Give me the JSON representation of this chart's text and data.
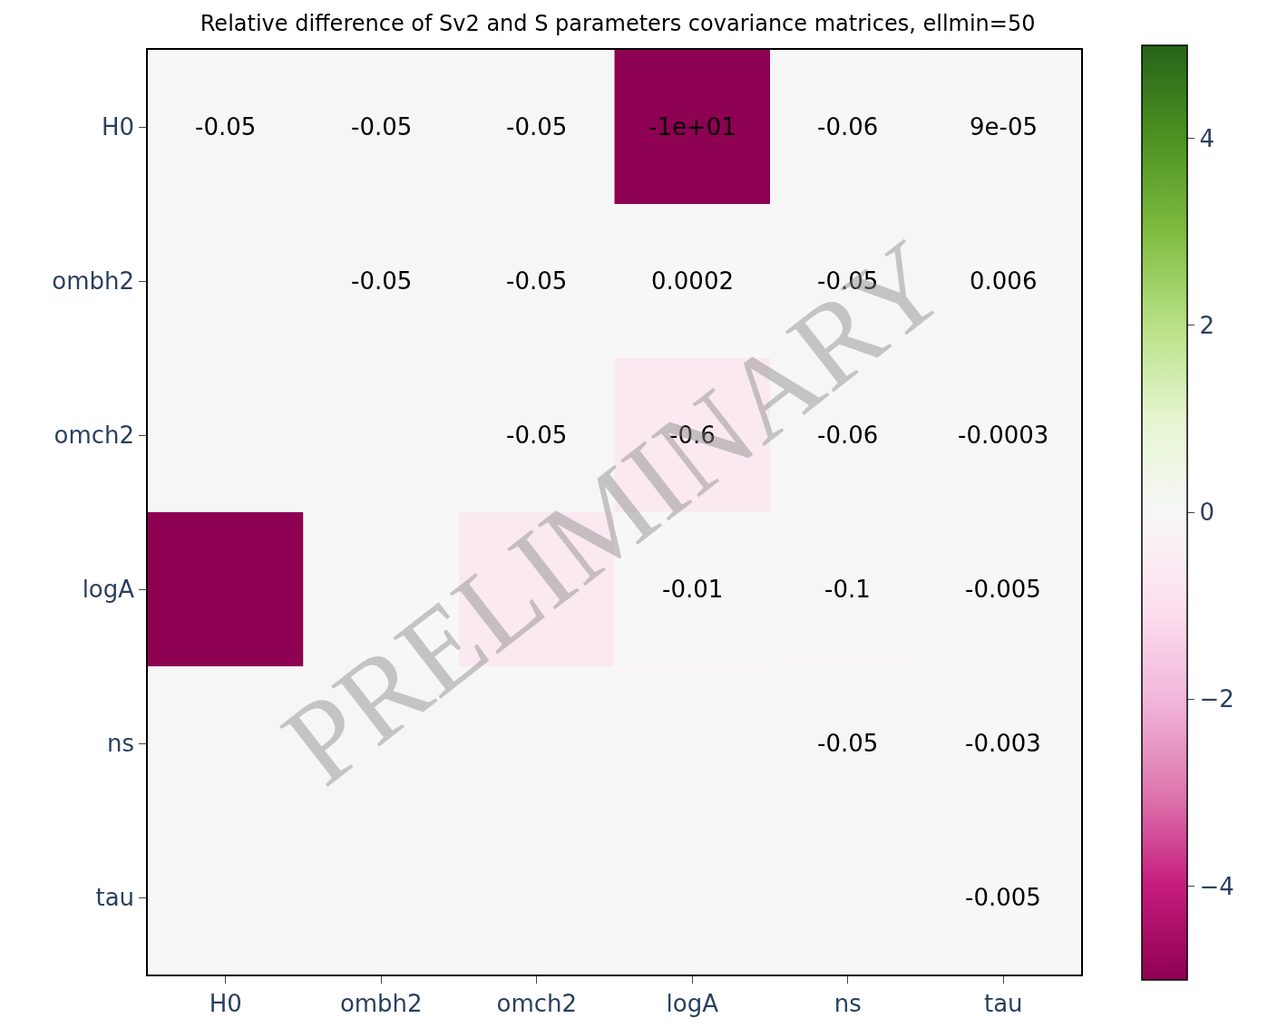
{
  "chart_data": {
    "type": "heatmap",
    "title": "Relative difference of Sv2 and S parameters covariance matrices, ellmin=50",
    "categories": [
      "H0",
      "ombh2",
      "omch2",
      "logA",
      "ns",
      "tau"
    ],
    "y_categories": [
      "H0",
      "ombh2",
      "omch2",
      "logA",
      "ns",
      "tau"
    ],
    "cells": [
      [
        -0.05,
        -0.05,
        -0.05,
        -10,
        -0.06,
        9e-05
      ],
      [
        -0.05,
        -0.05,
        -0.05,
        0.0002,
        -0.05,
        0.006
      ],
      [
        -0.05,
        -0.05,
        -0.05,
        -0.6,
        -0.06,
        -0.0003
      ],
      [
        -10,
        0.0002,
        -0.6,
        -0.01,
        -0.1,
        -0.005
      ],
      [
        -0.06,
        -0.05,
        -0.06,
        -0.1,
        -0.05,
        -0.003
      ],
      [
        9e-05,
        0.006,
        -0.0003,
        -0.005,
        -0.003,
        -0.005
      ]
    ],
    "cell_labels": [
      [
        "-0.05",
        "-0.05",
        "-0.05",
        "-1e+01",
        "-0.06",
        "9e-05"
      ],
      [
        null,
        "-0.05",
        "-0.05",
        "0.0002",
        "-0.05",
        "0.006"
      ],
      [
        null,
        null,
        "-0.05",
        "-0.6",
        "-0.06",
        "-0.0003"
      ],
      [
        null,
        null,
        null,
        "-0.01",
        "-0.1",
        "-0.005"
      ],
      [
        null,
        null,
        null,
        null,
        "-0.05",
        "-0.003"
      ],
      [
        null,
        null,
        null,
        null,
        null,
        "-0.005"
      ]
    ],
    "clim": [
      -5,
      5
    ],
    "cticks": [
      {
        "value": -4,
        "label": "−4"
      },
      {
        "value": -2,
        "label": "−2"
      },
      {
        "value": 0,
        "label": "0"
      },
      {
        "value": 2,
        "label": "2"
      },
      {
        "value": 4,
        "label": "4"
      }
    ],
    "annotations": [
      "PRELIMINARY"
    ]
  }
}
